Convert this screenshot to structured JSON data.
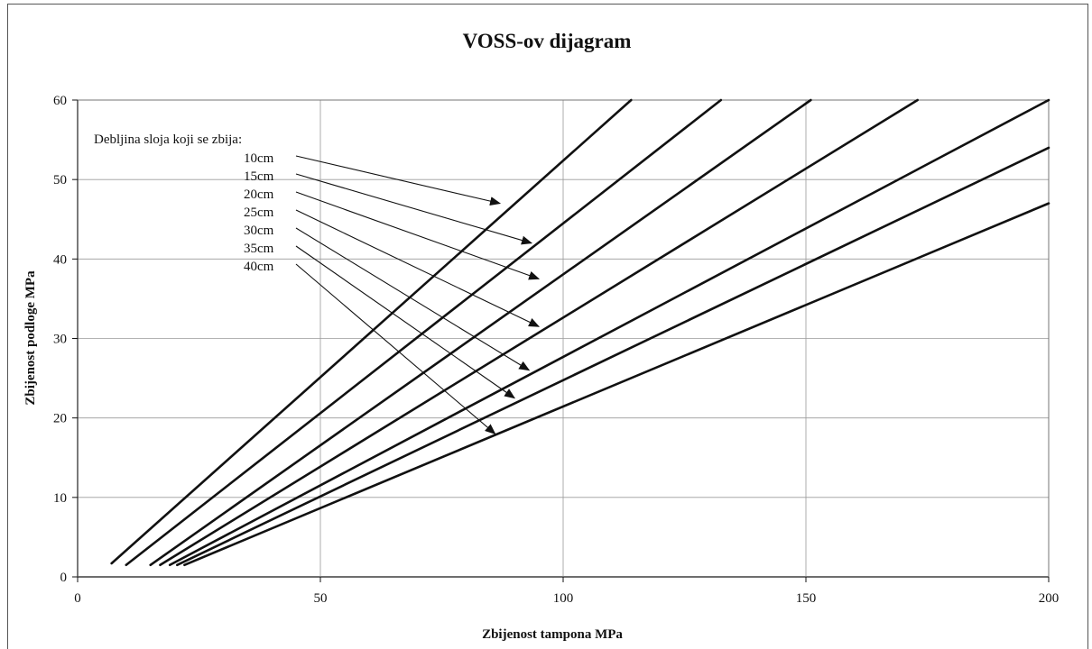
{
  "chart_data": {
    "type": "line",
    "title": "VOSS-ov dijagram",
    "xlabel": "Zbijenost tampona MPa",
    "ylabel": "Zbijenost podloge MPa",
    "xlim": [
      0,
      200
    ],
    "ylim": [
      0,
      60
    ],
    "xticks": [
      "0",
      "50",
      "100",
      "150",
      "200"
    ],
    "yticks": [
      "0",
      "10",
      "20",
      "30",
      "40",
      "50",
      "60"
    ],
    "grid": true,
    "legend_title": "Debljina sloja koji se zbija:",
    "series": [
      {
        "name": "10cm",
        "x": [
          7,
          114
        ],
        "y": [
          1.7,
          60
        ],
        "arrow_tip": [
          87,
          47
        ]
      },
      {
        "name": "15cm",
        "x": [
          10,
          132.5
        ],
        "y": [
          1.5,
          60
        ],
        "arrow_tip": [
          93.5,
          42
        ]
      },
      {
        "name": "20cm",
        "x": [
          15,
          151
        ],
        "y": [
          1.5,
          60
        ],
        "arrow_tip": [
          95,
          37.5
        ]
      },
      {
        "name": "25cm",
        "x": [
          17,
          173
        ],
        "y": [
          1.5,
          60
        ],
        "arrow_tip": [
          95,
          31.5
        ]
      },
      {
        "name": "30cm",
        "x": [
          19,
          200
        ],
        "y": [
          1.5,
          60
        ],
        "arrow_tip": [
          93,
          26
        ]
      },
      {
        "name": "35cm",
        "x": [
          20.5,
          200
        ],
        "y": [
          1.5,
          54
        ],
        "arrow_tip": [
          90,
          22.5
        ]
      },
      {
        "name": "40cm",
        "x": [
          22,
          200
        ],
        "y": [
          1.5,
          47
        ],
        "arrow_tip": [
          86,
          18
        ]
      }
    ]
  }
}
